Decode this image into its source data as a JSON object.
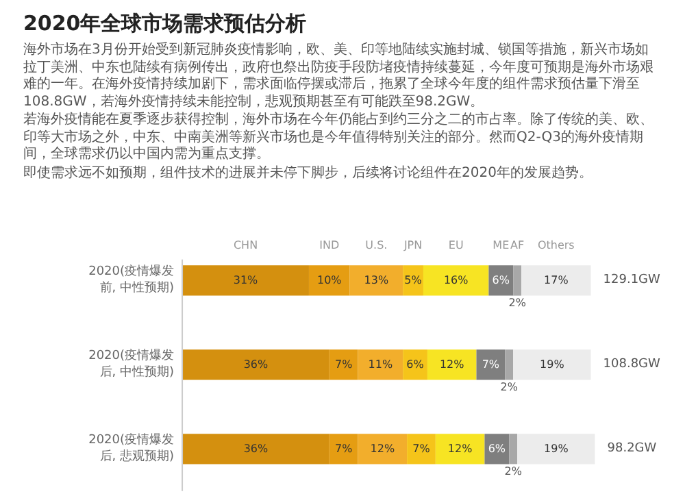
{
  "chart_data": {
    "type": "bar",
    "orientation": "horizontal",
    "stacked": true,
    "tick_labels": false,
    "title": "2020年全球市场需求预估分析",
    "annotations": [
      "海外市场在3月份开始受到新冠肺炎疫情影响，欧、美、印等地陆续实施封城、锁国等措施，新兴市场如拉丁美洲、中东也陆续有病例传出，政府也祭出防疫手段防堵疫情持续蔓延，今年度可预期是海外市场艰难的一年。在海外疫情持续加剧下，需求面临停摆或滞后，拖累了全球今年度的组件需求预估量下滑至108.8GW，若海外疫情持续未能控制，悲观预期甚至有可能跌至98.2GW。",
      "若海外疫情能在夏季逐步获得控制，海外市场在今年仍能占到约三分之二的市占率。除了传统的美、欧、印等大市场之外，中东、中南美洲等新兴市场也是今年值得特别关注的部分。然而Q2-Q3的海外疫情期间，全球需求仍以中国内需为重点支撑。",
      "即使需求远不如预期，组件技术的进展并未停下脚步，后续将讨论组件在2020年的发展趋势。",
      "129.1GW",
      "108.8GW",
      "98.2GW"
    ],
    "categories": [
      "2020(疫情爆发前, 中性预期)",
      "2020(疫情爆发后, 中性预期)",
      "2020(疫情爆发后, 悲观预期)"
    ],
    "series": [
      {
        "name": "CHN",
        "color": "#d4900f",
        "values": [
          31,
          36,
          36
        ],
        "value_labels": [
          "31%",
          "36%",
          "36%"
        ]
      },
      {
        "name": "IND",
        "color": "#e59d12",
        "values": [
          10,
          7,
          7
        ],
        "value_labels": [
          "10%",
          "7%",
          "7%"
        ]
      },
      {
        "name": "U.S.",
        "color": "#f2ae2c",
        "values": [
          13,
          11,
          12
        ],
        "value_labels": [
          "13%",
          "11%",
          "12%"
        ]
      },
      {
        "name": "JPN",
        "color": "#f5c41a",
        "values": [
          5,
          6,
          7
        ],
        "value_labels": [
          "5%",
          "6%",
          "7%"
        ]
      },
      {
        "name": "EU",
        "color": "#f7e423",
        "values": [
          16,
          12,
          12
        ],
        "value_labels": [
          "16%",
          "12%",
          "12%"
        ]
      },
      {
        "name": "ME",
        "color": "#7f7f7f",
        "values": [
          6,
          7,
          6
        ],
        "value_labels": [
          "6%",
          "7%",
          "6%"
        ]
      },
      {
        "name": "AF",
        "color": "#a8a8a8",
        "values": [
          2,
          2,
          2
        ],
        "value_labels": [
          "2%",
          "2%",
          "2%"
        ]
      },
      {
        "name": "Others",
        "color": "#ececec",
        "values": [
          17,
          19,
          19
        ],
        "value_labels": [
          "17%",
          "19%",
          "19%"
        ]
      }
    ]
  }
}
